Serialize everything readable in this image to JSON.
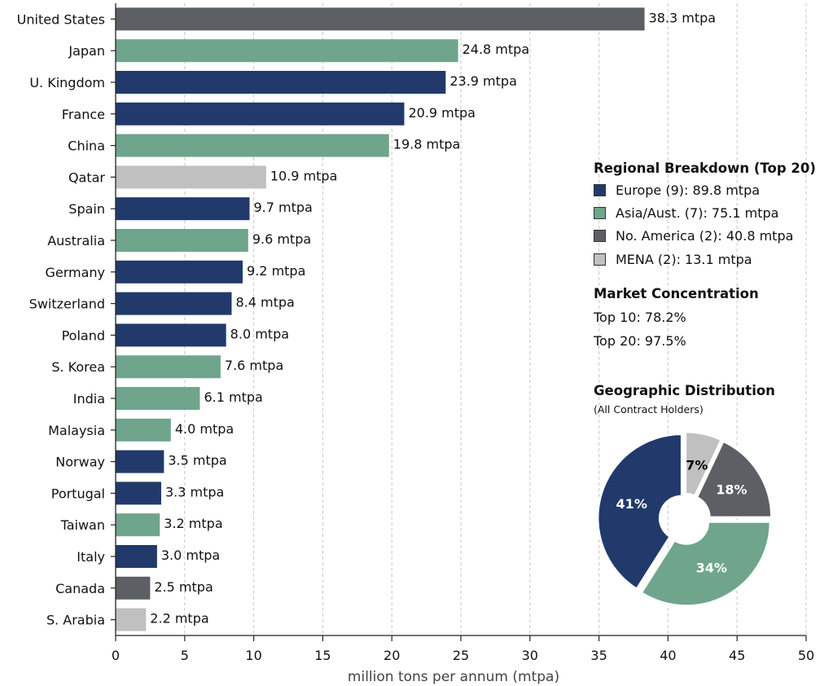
{
  "colors": {
    "europe": "#213a6b",
    "asia": "#6fa58c",
    "north_america": "#5c5f63",
    "mena": "#c0c0c0",
    "grid": "#c8c8c8",
    "axis": "#222222"
  },
  "chart_data": {
    "type": "bar",
    "orientation": "horizontal",
    "categories": [
      "United States",
      "Japan",
      "U. Kingdom",
      "France",
      "China",
      "Qatar",
      "Spain",
      "Australia",
      "Germany",
      "Switzerland",
      "Poland",
      "S. Korea",
      "India",
      "Malaysia",
      "Norway",
      "Portugal",
      "Taiwan",
      "Italy",
      "Canada",
      "S. Arabia"
    ],
    "values": [
      38.3,
      24.8,
      23.9,
      20.9,
      19.8,
      10.9,
      9.7,
      9.6,
      9.2,
      8.4,
      8.0,
      7.6,
      6.1,
      4.0,
      3.5,
      3.3,
      3.2,
      3.0,
      2.5,
      2.2
    ],
    "regions": [
      "north_america",
      "asia",
      "europe",
      "europe",
      "asia",
      "mena",
      "europe",
      "asia",
      "europe",
      "europe",
      "europe",
      "asia",
      "asia",
      "asia",
      "europe",
      "europe",
      "asia",
      "europe",
      "north_america",
      "mena"
    ],
    "value_labels": [
      "38.3 mtpa",
      "24.8 mtpa",
      "23.9 mtpa",
      "20.9 mtpa",
      "19.8 mtpa",
      "10.9 mtpa",
      "9.7 mtpa",
      "9.6 mtpa",
      "9.2 mtpa",
      "8.4 mtpa",
      "8.0 mtpa",
      "7.6 mtpa",
      "6.1 mtpa",
      "4.0 mtpa",
      "3.5 mtpa",
      "3.3 mtpa",
      "3.2 mtpa",
      "3.0 mtpa",
      "2.5 mtpa",
      "2.2 mtpa"
    ],
    "xlabel": "million tons per annum (mtpa)",
    "xlim": [
      0,
      50
    ],
    "xticks": [
      0,
      5,
      10,
      15,
      20,
      25,
      30,
      35,
      40,
      45,
      50
    ],
    "grid": "vertical dashed",
    "pie": {
      "slices": [
        {
          "region": "mena",
          "percent": 7,
          "label": "7%"
        },
        {
          "region": "north_america",
          "percent": 18,
          "label": "18%"
        },
        {
          "region": "asia",
          "percent": 34,
          "label": "34%"
        },
        {
          "region": "europe",
          "percent": 41,
          "label": "41%"
        }
      ]
    }
  },
  "panel": {
    "regional_title": "Regional Breakdown (Top 20)",
    "legend": [
      {
        "region": "europe",
        "label": "Europe (9): 89.8 mtpa"
      },
      {
        "region": "asia",
        "label": "Asia/Aust. (7): 75.1 mtpa"
      },
      {
        "region": "north_america",
        "label": "No. America (2): 40.8 mtpa"
      },
      {
        "region": "mena",
        "label": "MENA (2): 13.1 mtpa"
      }
    ],
    "concentration_title": "Market Concentration",
    "top10": "Top 10: 78.2%",
    "top20": "Top 20: 97.5%",
    "geo_title": "Geographic Distribution",
    "geo_subtitle": "(All Contract Holders)"
  }
}
